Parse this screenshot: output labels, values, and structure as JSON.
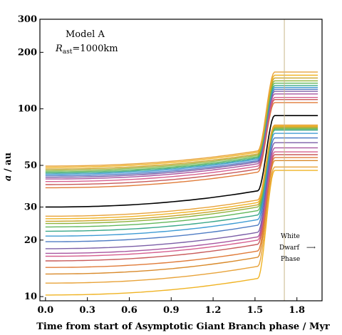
{
  "chart_data": {
    "type": "line",
    "xlabel": "Time from start of Asymptotic Giant Branch phase / Myr",
    "ylabel": "a / au",
    "ylabel_italic": "a",
    "ylabel_rest": "/ au",
    "xlim": [
      -0.04,
      1.98
    ],
    "ylim": [
      9.5,
      300
    ],
    "yscale": "log",
    "xticks": [
      0.0,
      0.3,
      0.6,
      0.9,
      1.2,
      1.5,
      1.8
    ],
    "xtick_labels": [
      "0.0",
      "0.3",
      "0.6",
      "0.9",
      "1.2",
      "1.5",
      "1.8"
    ],
    "yticks": [
      10,
      20,
      30,
      50,
      100,
      200,
      300
    ],
    "ytick_labels": [
      "10",
      "20",
      "30",
      "50",
      "100",
      "200",
      "300"
    ],
    "grid": false,
    "annotation_model": "Model A",
    "annotation_radius_sym": "R",
    "annotation_radius_sub": "ast",
    "annotation_radius_val": "=1000km",
    "phase_label_line1": "White",
    "phase_label_line2": "Dwarf",
    "phase_label_line3": "Phase",
    "phase_arrow": "⟶",
    "white_dwarf_x": 1.71,
    "highlight_color": "#000000",
    "colors": [
      "#f0b323",
      "#e8a33a",
      "#d98a2b",
      "#e07b39",
      "#c85a5a",
      "#d6608f",
      "#a855a0",
      "#7b5ea7",
      "#4f7cc4",
      "#3e9bd4",
      "#3aa88a",
      "#62b85b",
      "#8fb33c",
      "#c9a227"
    ],
    "series": [
      {
        "start": 10.2,
        "pre": 12.5,
        "end": 47
      },
      {
        "start": 11.8,
        "pre": 14.5,
        "end": 49
      },
      {
        "start": 13.2,
        "pre": 16.2,
        "end": 53
      },
      {
        "start": 14.3,
        "pre": 17.5,
        "end": 55
      },
      {
        "start": 15.5,
        "pre": 19.0,
        "end": 57
      },
      {
        "start": 16.4,
        "pre": 20.0,
        "end": 59
      },
      {
        "start": 17.0,
        "pre": 20.8,
        "end": 62
      },
      {
        "start": 18.0,
        "pre": 22.0,
        "end": 66
      },
      {
        "start": 19.6,
        "pre": 24.0,
        "end": 70
      },
      {
        "start": 21.0,
        "pre": 25.7,
        "end": 74
      },
      {
        "start": 22.3,
        "pre": 27.2,
        "end": 77
      },
      {
        "start": 23.5,
        "pre": 28.7,
        "end": 78
      },
      {
        "start": 24.5,
        "pre": 30.0,
        "end": 79
      },
      {
        "start": 25.2,
        "pre": 30.8,
        "end": 80
      },
      {
        "start": 26.0,
        "pre": 31.7,
        "end": 81
      },
      {
        "start": 26.8,
        "pre": 32.7,
        "end": 82
      },
      {
        "start": 30.0,
        "pre": 36.6,
        "end": 92,
        "highlight": true
      },
      {
        "start": 38.0,
        "pre": 46.0,
        "end": 108
      },
      {
        "start": 39.5,
        "pre": 47.8,
        "end": 112
      },
      {
        "start": 41.0,
        "pre": 49.5,
        "end": 115
      },
      {
        "start": 42.3,
        "pre": 51.0,
        "end": 120
      },
      {
        "start": 43.2,
        "pre": 52.2,
        "end": 124
      },
      {
        "start": 44.0,
        "pre": 53.0,
        "end": 127
      },
      {
        "start": 44.8,
        "pre": 54.0,
        "end": 130
      },
      {
        "start": 45.5,
        "pre": 54.8,
        "end": 133
      },
      {
        "start": 46.2,
        "pre": 55.6,
        "end": 137
      },
      {
        "start": 47.0,
        "pre": 56.6,
        "end": 141
      },
      {
        "start": 47.8,
        "pre": 57.5,
        "end": 146
      },
      {
        "start": 48.8,
        "pre": 58.7,
        "end": 151
      },
      {
        "start": 49.6,
        "pre": 59.7,
        "end": 157
      }
    ]
  }
}
